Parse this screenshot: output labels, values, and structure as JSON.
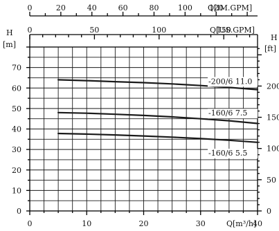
{
  "chart_data": {
    "type": "line",
    "x_primary": {
      "label": "Q[m³/h]",
      "range": [
        0,
        40
      ],
      "ticks": [
        "0",
        "10",
        "20",
        "30",
        "40"
      ]
    },
    "x_top_1": {
      "label": "Q[IM.GPM]",
      "range_in_m3h": [
        0,
        40
      ],
      "factor": 3.6662,
      "ticks": [
        "0",
        "20",
        "40",
        "60",
        "80",
        "100",
        "120"
      ]
    },
    "x_top_2": {
      "label": "Q[US.GPM]",
      "factor": 4.4029,
      "ticks": [
        "0",
        "50",
        "100",
        "150"
      ]
    },
    "y_left": {
      "label": "H",
      "unit": "[m]",
      "range": [
        0,
        80
      ],
      "ticks": [
        "0",
        "10",
        "20",
        "30",
        "40",
        "50",
        "60",
        "70"
      ]
    },
    "y_right": {
      "label": "H",
      "unit": "[ft]",
      "factor": 3.28084,
      "ticks": [
        "0",
        "50",
        "100",
        "150",
        "200"
      ]
    },
    "grid": true,
    "series": [
      {
        "name": "-200/6  11.0",
        "x": [
          5,
          10,
          15,
          20,
          25,
          30,
          35,
          40
        ],
        "y": [
          64,
          63.6,
          63.1,
          62.6,
          62,
          61.2,
          60.3,
          59.2
        ]
      },
      {
        "name": "-160/6  7.5",
        "x": [
          5,
          10,
          15,
          20,
          25,
          30,
          35,
          40
        ],
        "y": [
          48,
          47.7,
          47.2,
          46.6,
          45.9,
          45,
          44,
          42.7
        ]
      },
      {
        "name": "-160/6  5.5",
        "x": [
          5,
          10,
          15,
          20,
          25,
          30,
          35,
          40
        ],
        "y": [
          37.8,
          37.5,
          37.1,
          36.6,
          36,
          35.3,
          34.5,
          33.5
        ]
      }
    ],
    "labels_at_y": [
      62,
      46.5,
      27
    ]
  }
}
